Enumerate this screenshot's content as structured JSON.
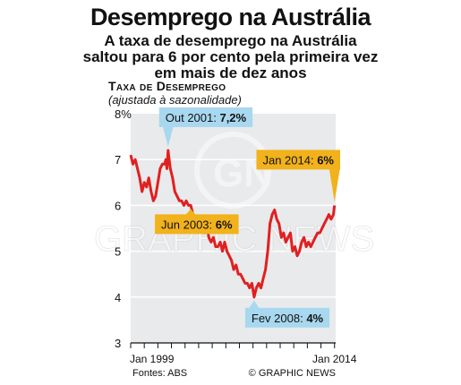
{
  "header": {
    "title": "Desemprego na Austrália",
    "subtitle": "A taxa de desemprego na Austrália saltou para 6 por cento pela primeira vez em mais de dez anos"
  },
  "footer": {
    "source": "Fontes: ABS",
    "credit": "© GRAPHIC NEWS"
  },
  "colors": {
    "line": "#e02020",
    "panel": "#e9eaeb",
    "callout_blue": "#a8d8ef",
    "callout_orange": "#f2b21c"
  },
  "chart_data": {
    "type": "line",
    "title": "Taxa de Desemprego",
    "subtitle": "(ajustada à sazonalidade)",
    "ylim": [
      3,
      8
    ],
    "y_ticks": [
      3,
      4,
      5,
      6,
      7,
      8
    ],
    "y_unit": "%",
    "x_range": [
      "1999-01",
      "2014-02"
    ],
    "x_tick_labels": [
      "Jan 1999",
      "Jan 2014"
    ],
    "grid": true,
    "series": [
      {
        "values": [
          [
            "1999-01",
            7.1
          ],
          [
            "1999-03",
            6.9
          ],
          [
            "1999-05",
            7.0
          ],
          [
            "1999-07",
            6.8
          ],
          [
            "1999-09",
            6.6
          ],
          [
            "1999-11",
            6.3
          ],
          [
            "2000-01",
            6.5
          ],
          [
            "2000-03",
            6.4
          ],
          [
            "2000-05",
            6.6
          ],
          [
            "2000-07",
            6.3
          ],
          [
            "2000-09",
            6.1
          ],
          [
            "2000-11",
            6.2
          ],
          [
            "2001-01",
            6.5
          ],
          [
            "2001-03",
            6.8
          ],
          [
            "2001-05",
            6.9
          ],
          [
            "2001-07",
            6.9
          ],
          [
            "2001-08",
            7.0
          ],
          [
            "2001-09",
            6.8
          ],
          [
            "2001-10",
            7.2
          ],
          [
            "2001-11",
            7.0
          ],
          [
            "2001-12",
            6.8
          ],
          [
            "2002-02",
            6.6
          ],
          [
            "2002-04",
            6.3
          ],
          [
            "2002-06",
            6.2
          ],
          [
            "2002-08",
            6.1
          ],
          [
            "2002-10",
            6.1
          ],
          [
            "2002-12",
            6.0
          ],
          [
            "2003-02",
            6.1
          ],
          [
            "2003-04",
            6.0
          ],
          [
            "2003-06",
            6.0
          ],
          [
            "2003-08",
            5.8
          ],
          [
            "2003-10",
            5.7
          ],
          [
            "2003-12",
            5.7
          ],
          [
            "2004-02",
            5.6
          ],
          [
            "2004-04",
            5.5
          ],
          [
            "2004-06",
            5.4
          ],
          [
            "2004-08",
            5.6
          ],
          [
            "2004-10",
            5.3
          ],
          [
            "2004-12",
            5.2
          ],
          [
            "2005-02",
            5.3
          ],
          [
            "2005-04",
            5.1
          ],
          [
            "2005-06",
            5.1
          ],
          [
            "2005-08",
            5.2
          ],
          [
            "2005-10",
            5.0
          ],
          [
            "2005-12",
            5.2
          ],
          [
            "2006-02",
            5.0
          ],
          [
            "2006-04",
            4.9
          ],
          [
            "2006-06",
            4.8
          ],
          [
            "2006-08",
            4.6
          ],
          [
            "2006-10",
            4.7
          ],
          [
            "2006-12",
            4.5
          ],
          [
            "2007-02",
            4.5
          ],
          [
            "2007-04",
            4.4
          ],
          [
            "2007-06",
            4.3
          ],
          [
            "2007-08",
            4.3
          ],
          [
            "2007-10",
            4.2
          ],
          [
            "2007-12",
            4.3
          ],
          [
            "2008-02",
            4.0
          ],
          [
            "2008-04",
            4.2
          ],
          [
            "2008-06",
            4.3
          ],
          [
            "2008-08",
            4.2
          ],
          [
            "2008-10",
            4.4
          ],
          [
            "2008-12",
            4.6
          ],
          [
            "2009-02",
            5.0
          ],
          [
            "2009-04",
            5.6
          ],
          [
            "2009-06",
            5.8
          ],
          [
            "2009-08",
            5.9
          ],
          [
            "2009-10",
            5.7
          ],
          [
            "2009-12",
            5.6
          ],
          [
            "2010-02",
            5.3
          ],
          [
            "2010-04",
            5.4
          ],
          [
            "2010-06",
            5.2
          ],
          [
            "2010-08",
            5.3
          ],
          [
            "2010-10",
            5.4
          ],
          [
            "2010-12",
            5.0
          ],
          [
            "2011-02",
            5.1
          ],
          [
            "2011-04",
            4.9
          ],
          [
            "2011-06",
            5.0
          ],
          [
            "2011-08",
            5.2
          ],
          [
            "2011-10",
            5.3
          ],
          [
            "2011-12",
            5.1
          ],
          [
            "2012-02",
            5.2
          ],
          [
            "2012-04",
            5.1
          ],
          [
            "2012-06",
            5.2
          ],
          [
            "2012-08",
            5.3
          ],
          [
            "2012-10",
            5.4
          ],
          [
            "2012-12",
            5.4
          ],
          [
            "2013-02",
            5.5
          ],
          [
            "2013-04",
            5.6
          ],
          [
            "2013-06",
            5.7
          ],
          [
            "2013-08",
            5.8
          ],
          [
            "2013-10",
            5.7
          ],
          [
            "2013-12",
            5.8
          ],
          [
            "2014-01",
            6.0
          ]
        ]
      }
    ],
    "annotations": [
      {
        "label": "Out 2001",
        "value": "7,2%",
        "x": "2001-10",
        "y": 7.2,
        "color": "blue"
      },
      {
        "label": "Jun 2003",
        "value": "6%",
        "x": "2003-06",
        "y": 6.0,
        "color": "orange"
      },
      {
        "label": "Fev 2008",
        "value": "4%",
        "x": "2008-02",
        "y": 4.0,
        "color": "blue"
      },
      {
        "label": "Jan 2014",
        "value": "6%",
        "x": "2014-01",
        "y": 6.0,
        "color": "orange"
      }
    ]
  }
}
